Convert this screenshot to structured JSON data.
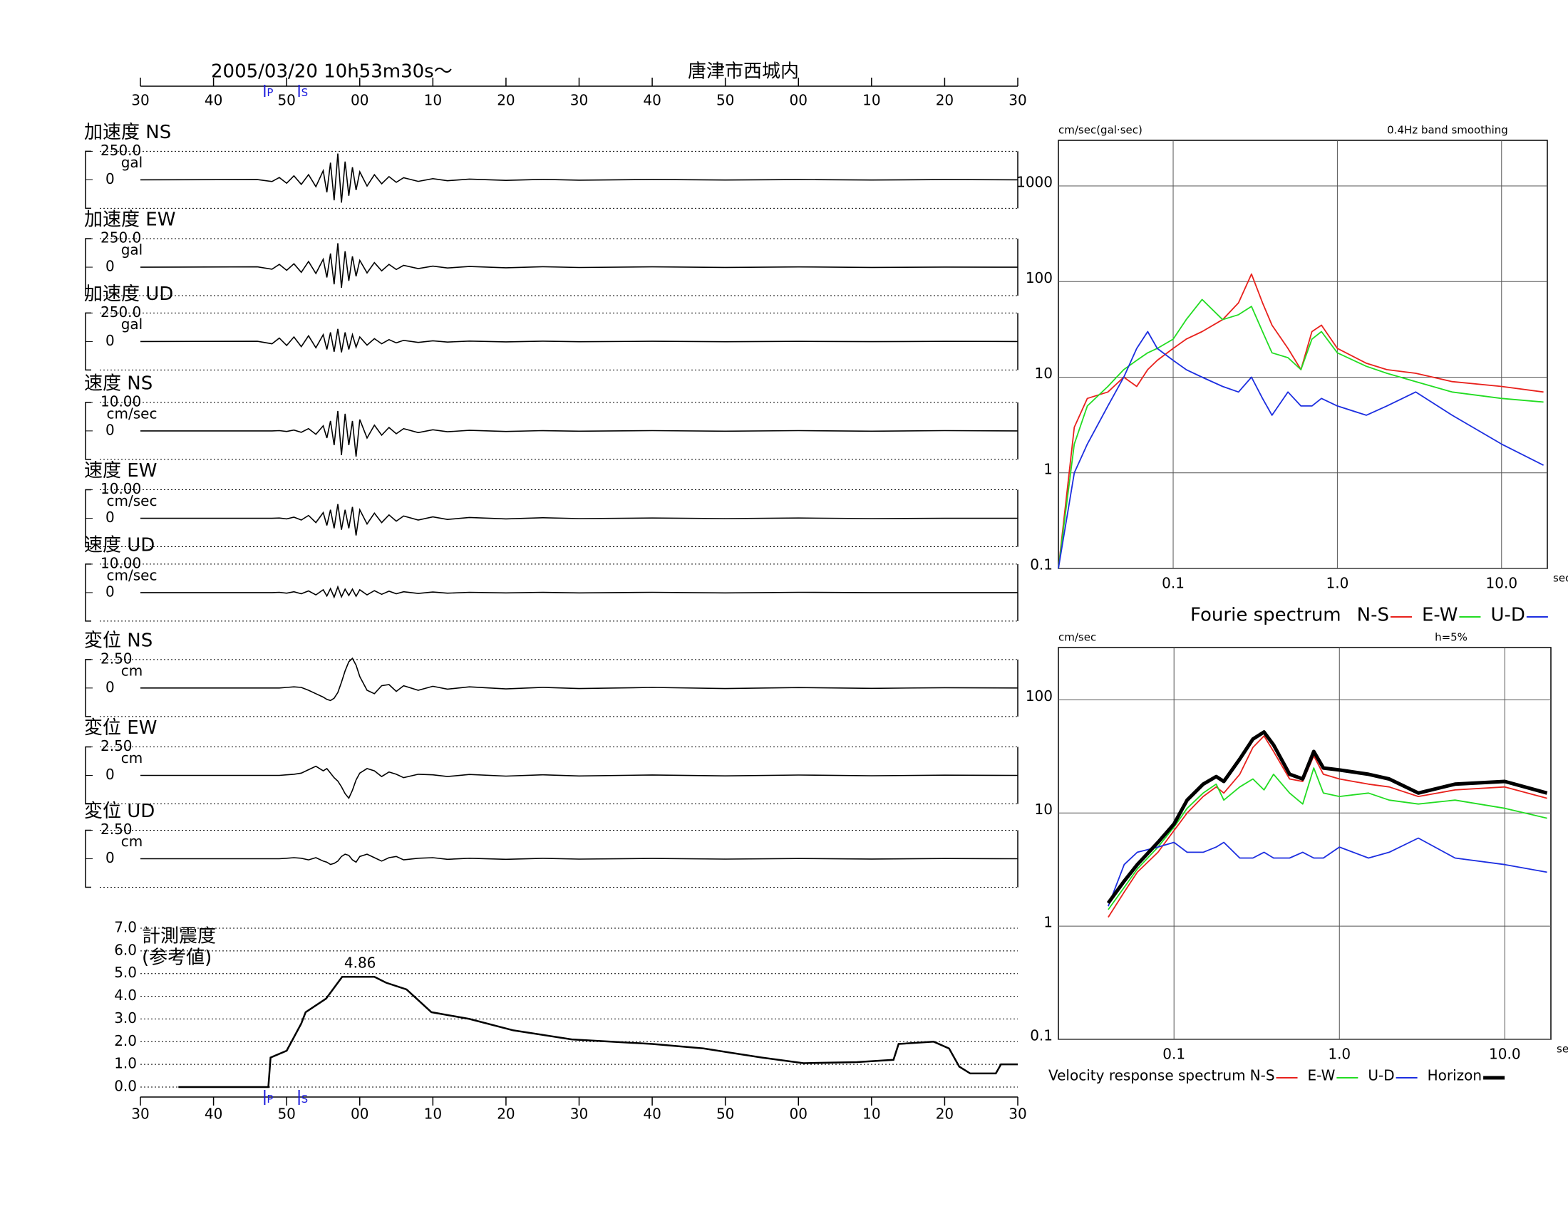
{
  "header": {
    "title": "2005/03/20  10h53m30s～",
    "station": "唐津市西城内"
  },
  "chart_data": [
    {
      "type": "waveforms",
      "xlim": [
        0,
        120
      ],
      "xticks": [
        {
          "value": 0,
          "label": "30"
        },
        {
          "value": 10,
          "label": "40"
        },
        {
          "value": 20,
          "label": "50"
        },
        {
          "value": 30,
          "label": "00"
        },
        {
          "value": 40,
          "label": "10"
        },
        {
          "value": 50,
          "label": "20"
        },
        {
          "value": 60,
          "label": "30"
        },
        {
          "value": 70,
          "label": "40"
        },
        {
          "value": 80,
          "label": "50"
        },
        {
          "value": 90,
          "label": "00"
        },
        {
          "value": 100,
          "label": "10"
        },
        {
          "value": 110,
          "label": "20"
        },
        {
          "value": 120,
          "label": "30"
        }
      ],
      "phases": [
        {
          "label": "P",
          "x": 17,
          "color": "#1a1adc"
        },
        {
          "label": "S",
          "x": 21.7,
          "color": "#1a1adc"
        }
      ],
      "x": [
        0,
        16,
        18,
        19,
        20,
        21,
        22,
        23,
        24,
        25,
        25.5,
        26,
        26.5,
        27,
        27.5,
        28,
        28.5,
        29,
        29.5,
        30,
        31,
        32,
        33,
        34,
        35,
        36,
        38,
        40,
        42,
        45,
        50,
        55,
        60,
        70,
        80,
        90,
        100,
        110,
        120
      ],
      "series": [
        {
          "name": "加速度 NS",
          "unit": "gal",
          "color": "#000000",
          "ylim": [
            -250,
            250
          ],
          "yticks": [
            {
              "value": 250,
              "label": "250.0"
            },
            0
          ],
          "values": [
            0,
            2,
            -15,
            20,
            -30,
            35,
            -40,
            45,
            -60,
            80,
            -110,
            150,
            -180,
            230,
            -200,
            160,
            -140,
            110,
            -90,
            70,
            -55,
            45,
            -35,
            28,
            -22,
            18,
            -14,
            10,
            -8,
            6,
            -5,
            4,
            -3,
            3,
            -2,
            2,
            -2,
            2,
            0
          ]
        },
        {
          "name": "加速度 EW",
          "unit": "gal",
          "color": "#000000",
          "ylim": [
            -250,
            250
          ],
          "yticks": [
            {
              "value": 250,
              "label": "250.0"
            },
            0
          ],
          "values": [
            0,
            3,
            -18,
            25,
            -28,
            30,
            -45,
            50,
            -55,
            70,
            -90,
            120,
            -150,
            210,
            -180,
            140,
            -120,
            95,
            -80,
            60,
            -50,
            40,
            -32,
            25,
            -20,
            16,
            -12,
            9,
            -7,
            6,
            -5,
            4,
            -3,
            3,
            -2,
            2,
            -2,
            1,
            0
          ]
        },
        {
          "name": "加速度 UD",
          "unit": "gal",
          "color": "#000000",
          "ylim": [
            -250,
            250
          ],
          "yticks": [
            {
              "value": 250,
              "label": "250.0"
            },
            0
          ],
          "values": [
            0,
            2,
            -20,
            30,
            -35,
            40,
            -45,
            50,
            -55,
            60,
            -70,
            80,
            -90,
            110,
            -95,
            80,
            -70,
            60,
            -50,
            40,
            -32,
            25,
            -20,
            16,
            -12,
            10,
            -8,
            6,
            -5,
            4,
            -3,
            3,
            -2,
            2,
            -2,
            1,
            -1,
            1,
            0
          ]
        },
        {
          "name": "速度 NS",
          "unit": "cm/sec",
          "color": "#000000",
          "ylim": [
            -10,
            10
          ],
          "yticks": [
            {
              "value": 10,
              "label": "10.00"
            },
            0
          ],
          "values": [
            0,
            0,
            0,
            0.1,
            -0.2,
            0.3,
            -0.5,
            0.8,
            -1.2,
            1.8,
            -2.5,
            3.5,
            -5,
            7,
            -8.5,
            6,
            -5,
            3.5,
            -9,
            4,
            -2.5,
            2,
            -1.5,
            1.2,
            -1,
            0.8,
            -0.6,
            0.4,
            -0.3,
            0.2,
            -0.2,
            0.1,
            -0.1,
            0.1,
            -0.1,
            0.1,
            -0.1,
            0.1,
            0
          ]
        },
        {
          "name": "速度 EW",
          "unit": "cm/sec",
          "color": "#000000",
          "ylim": [
            -10,
            10
          ],
          "yticks": [
            {
              "value": 10,
              "label": "10.00"
            },
            0
          ],
          "values": [
            0,
            0,
            0,
            0.1,
            -0.2,
            0.4,
            -0.6,
            1,
            -1.5,
            2,
            -2.5,
            3,
            -3.5,
            5,
            -4,
            3,
            -3.5,
            4,
            -6,
            3,
            -2,
            1.8,
            -1.5,
            1.2,
            -1,
            0.8,
            -0.6,
            0.5,
            -0.4,
            0.3,
            -0.2,
            0.2,
            -0.1,
            0.1,
            -0.1,
            0.1,
            -0.1,
            0,
            0
          ]
        },
        {
          "name": "速度 UD",
          "unit": "cm/sec",
          "color": "#000000",
          "ylim": [
            -10,
            10
          ],
          "yticks": [
            {
              "value": 10,
              "label": "10.00"
            },
            0
          ],
          "values": [
            0,
            0,
            0,
            0.1,
            -0.2,
            0.3,
            -0.4,
            0.6,
            -0.8,
            1,
            -1.2,
            1.4,
            -1.6,
            2,
            -1.5,
            1.2,
            -1,
            1.2,
            -1.3,
            1,
            -0.8,
            0.7,
            -0.6,
            0.5,
            -0.4,
            0.3,
            -0.3,
            0.2,
            -0.2,
            0.1,
            -0.1,
            0.1,
            -0.1,
            0.1,
            -0.1,
            0.1,
            0,
            0,
            0
          ]
        },
        {
          "name": "変位 NS",
          "unit": "cm",
          "color": "#000000",
          "ylim": [
            -2.5,
            2.5
          ],
          "yticks": [
            {
              "value": 2.5,
              "label": "2.50"
            },
            0
          ],
          "values": [
            0,
            0,
            0,
            0,
            0.05,
            0.1,
            0.05,
            -0.2,
            -0.5,
            -0.8,
            -1,
            -1.1,
            -0.9,
            -0.4,
            0.5,
            1.5,
            2.3,
            2.6,
            2,
            1,
            -0.2,
            -0.5,
            0.2,
            0.3,
            -0.3,
            0.2,
            -0.2,
            0.15,
            -0.1,
            0.1,
            -0.08,
            0.06,
            -0.05,
            0.05,
            -0.05,
            0.04,
            -0.03,
            0.03,
            0
          ]
        },
        {
          "name": "変位 EW",
          "unit": "cm",
          "color": "#000000",
          "ylim": [
            -2.5,
            2.5
          ],
          "yticks": [
            {
              "value": 2.5,
              "label": "2.50"
            },
            0
          ],
          "values": [
            0,
            0,
            0,
            0,
            0.05,
            0.1,
            0.2,
            0.5,
            0.8,
            0.4,
            0.6,
            0.2,
            -0.2,
            -0.5,
            -1,
            -1.6,
            -2,
            -1.3,
            -0.4,
            0.2,
            0.6,
            0.4,
            -0.1,
            0.3,
            0.1,
            -0.2,
            0.1,
            0.05,
            -0.1,
            0.08,
            -0.06,
            0.05,
            -0.05,
            0.04,
            -0.04,
            0.03,
            -0.03,
            0.02,
            0
          ]
        },
        {
          "name": "変位 UD",
          "unit": "cm",
          "color": "#000000",
          "ylim": [
            -2.5,
            2.5
          ],
          "yticks": [
            {
              "value": 2.5,
              "label": "2.50"
            },
            0
          ],
          "values": [
            0,
            0,
            0,
            0,
            0.05,
            0.1,
            0.05,
            -0.1,
            0.1,
            -0.2,
            -0.3,
            -0.5,
            -0.4,
            -0.2,
            0.2,
            0.4,
            0.3,
            -0.1,
            -0.3,
            0.2,
            0.4,
            0.1,
            -0.2,
            0.1,
            0.2,
            -0.1,
            0.05,
            0.1,
            -0.05,
            0.05,
            -0.05,
            0.04,
            -0.03,
            0.03,
            -0.03,
            0.02,
            -0.02,
            0.02,
            0
          ]
        }
      ]
    },
    {
      "type": "intensity",
      "title": "計測震度",
      "subtitle": "(参考値)",
      "peak_label": "4.86",
      "color": "#000000",
      "grid": true,
      "xlim": [
        0,
        120
      ],
      "xticks": [
        {
          "value": 0,
          "label": "30"
        },
        {
          "value": 10,
          "label": "40"
        },
        {
          "value": 20,
          "label": "50"
        },
        {
          "value": 30,
          "label": "00"
        },
        {
          "value": 40,
          "label": "10"
        },
        {
          "value": 50,
          "label": "20"
        },
        {
          "value": 60,
          "label": "30"
        },
        {
          "value": 70,
          "label": "40"
        },
        {
          "value": 80,
          "label": "50"
        },
        {
          "value": 90,
          "label": "00"
        },
        {
          "value": 100,
          "label": "10"
        },
        {
          "value": 110,
          "label": "20"
        },
        {
          "value": 120,
          "label": "30"
        }
      ],
      "ylim": [
        0,
        7
      ],
      "yticks": [
        {
          "value": 0,
          "label": "0.0"
        },
        {
          "value": 1,
          "label": "1.0"
        },
        {
          "value": 2,
          "label": "2.0"
        },
        {
          "value": 3,
          "label": "3.0"
        },
        {
          "value": 4,
          "label": "4.0"
        },
        {
          "value": 5,
          "label": "5.0"
        },
        {
          "value": 6,
          "label": "6.0"
        },
        {
          "value": 7,
          "label": "7.0"
        }
      ],
      "x": [
        5.2,
        17.5,
        17.8,
        20,
        22,
        22.6,
        25.4,
        27.6,
        32,
        33.6,
        36.4,
        39.8,
        45,
        51,
        59,
        70,
        77,
        85,
        90.7,
        98,
        103,
        103.7,
        108.5,
        110.6,
        112,
        113.5,
        117,
        117.7,
        120
      ],
      "values": [
        0,
        0,
        1.3,
        1.6,
        2.8,
        3.3,
        3.9,
        4.86,
        4.86,
        4.6,
        4.3,
        3.3,
        3.0,
        2.5,
        2.1,
        1.9,
        1.7,
        1.3,
        1.05,
        1.1,
        1.2,
        1.9,
        2.0,
        1.7,
        0.9,
        0.6,
        0.6,
        1.0,
        1.0
      ]
    },
    {
      "type": "line",
      "xscale": "log",
      "yscale": "log",
      "grid": true,
      "y_label": "cm/sec(gal·sec)",
      "x_label": "sec",
      "note": "0.4Hz band smoothing",
      "legend_title": "Fourie spectrum",
      "xlim": [
        0.02,
        19
      ],
      "ylim": [
        0.1,
        3000
      ],
      "xticks": [
        {
          "value": 0.1,
          "label": "0.1"
        },
        {
          "value": 1,
          "label": "1.0"
        },
        {
          "value": 10,
          "label": "10.0"
        }
      ],
      "yticks": [
        0.1,
        1,
        10,
        100,
        1000
      ],
      "x": [
        0.02,
        0.025,
        0.03,
        0.04,
        0.05,
        0.06,
        0.07,
        0.08,
        0.1,
        0.12,
        0.15,
        0.2,
        0.25,
        0.3,
        0.35,
        0.4,
        0.5,
        0.6,
        0.7,
        0.8,
        1.0,
        1.5,
        2,
        3,
        5,
        10,
        18
      ],
      "series": [
        {
          "name": "N-S",
          "color": "#e8211c",
          "values": [
            0.1,
            3,
            6,
            7,
            10,
            8,
            12,
            15,
            20,
            25,
            30,
            40,
            60,
            120,
            60,
            35,
            20,
            12,
            30,
            35,
            20,
            14,
            12,
            11,
            9,
            8,
            7
          ]
        },
        {
          "name": "E-W",
          "color": "#22dc22",
          "values": [
            0.1,
            2,
            5,
            8,
            12,
            15,
            18,
            20,
            25,
            40,
            65,
            40,
            45,
            55,
            30,
            18,
            16,
            12,
            25,
            30,
            18,
            13,
            11,
            9,
            7,
            6,
            5.5
          ]
        },
        {
          "name": "U-D",
          "color": "#1c2ee0",
          "values": [
            0.1,
            1,
            2,
            5,
            10,
            20,
            30,
            20,
            15,
            12,
            10,
            8,
            7,
            10,
            6,
            4,
            7,
            5,
            5,
            6,
            5,
            4,
            5,
            7,
            4,
            2,
            1.2
          ]
        }
      ]
    },
    {
      "type": "line",
      "xscale": "log",
      "yscale": "log",
      "grid": true,
      "y_label": "cm/sec",
      "x_label": "sec",
      "note": "h=5%",
      "legend_title": "Velocity response spectrum",
      "xlim": [
        0.02,
        19
      ],
      "ylim": [
        0.1,
        290
      ],
      "xticks": [
        {
          "value": 0.1,
          "label": "0.1"
        },
        {
          "value": 1,
          "label": "1.0"
        },
        {
          "value": 10,
          "label": "10.0"
        }
      ],
      "yticks": [
        0.1,
        1,
        10,
        100
      ],
      "x": [
        0.04,
        0.05,
        0.06,
        0.08,
        0.1,
        0.12,
        0.15,
        0.18,
        0.2,
        0.25,
        0.3,
        0.35,
        0.4,
        0.5,
        0.6,
        0.7,
        0.8,
        1.0,
        1.5,
        2,
        3,
        5,
        10,
        18
      ],
      "series": [
        {
          "name": "N-S",
          "color": "#e8211c",
          "values": [
            1.2,
            2,
            3,
            4.5,
            7,
            10,
            14,
            17,
            15,
            22,
            38,
            48,
            35,
            20,
            19,
            32,
            22,
            20,
            18,
            17,
            14,
            16,
            17,
            13.5
          ]
        },
        {
          "name": "E-W",
          "color": "#22dc22",
          "values": [
            1.4,
            2.2,
            3.2,
            5,
            7.5,
            11,
            15,
            18,
            13,
            17,
            20,
            16,
            22,
            15,
            12,
            25,
            15,
            14,
            15,
            13,
            12,
            13,
            11,
            9
          ]
        },
        {
          "name": "U-D",
          "color": "#1c2ee0",
          "values": [
            1.5,
            3.5,
            4.5,
            5,
            5.5,
            4.5,
            4.5,
            5,
            5.5,
            4,
            4,
            4.5,
            4,
            4,
            4.5,
            4,
            4,
            5,
            4,
            4.5,
            6,
            4,
            3.5,
            3
          ]
        },
        {
          "name": "Horizon",
          "color": "#000000",
          "bold": true,
          "values": [
            1.6,
            2.5,
            3.5,
            5.5,
            8,
            13,
            18,
            21,
            19,
            30,
            45,
            52,
            40,
            22,
            20,
            35,
            25,
            24,
            22,
            20,
            15,
            18,
            19,
            15
          ]
        }
      ]
    }
  ]
}
